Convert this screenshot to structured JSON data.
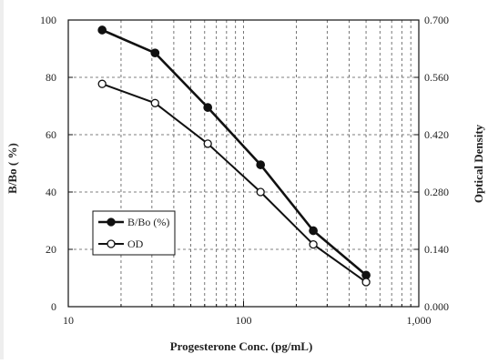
{
  "chart_data": {
    "type": "line",
    "title": "",
    "xlabel": "Progesterone Conc. (pg/mL)",
    "ylabel": "B/Bo ( %)",
    "y2label": "Optical Density",
    "x_scale": "log",
    "xlim": [
      10,
      1000
    ],
    "ylim": [
      0,
      100
    ],
    "y2lim": [
      0,
      0.7
    ],
    "x_ticks": [
      10,
      100,
      1000
    ],
    "x_tick_labels": [
      "10",
      "100",
      "1,000"
    ],
    "y_tick_labels": [
      "0",
      "20",
      "40",
      "60",
      "80",
      "100"
    ],
    "y2_tick_labels": [
      "0.000",
      "0.140",
      "0.280",
      "0.420",
      "0.560",
      "0.700"
    ],
    "grid": true,
    "legend_position": "lower-left",
    "series": [
      {
        "name": "B/Bo (%)",
        "axis": "left",
        "marker": "filled-circle",
        "x": [
          15.6,
          31.25,
          62.5,
          125,
          250,
          500
        ],
        "y": [
          96.5,
          88.5,
          69.5,
          49.5,
          26.5,
          11
        ]
      },
      {
        "name": "OD",
        "axis": "right",
        "marker": "open-circle",
        "x": [
          15.6,
          31.25,
          62.5,
          125,
          250,
          500
        ],
        "y": [
          0.544,
          0.497,
          0.398,
          0.28,
          0.152,
          0.06
        ]
      }
    ],
    "colors": {
      "line": "#111111",
      "grid": "#555555",
      "background": "#ffffff"
    }
  }
}
